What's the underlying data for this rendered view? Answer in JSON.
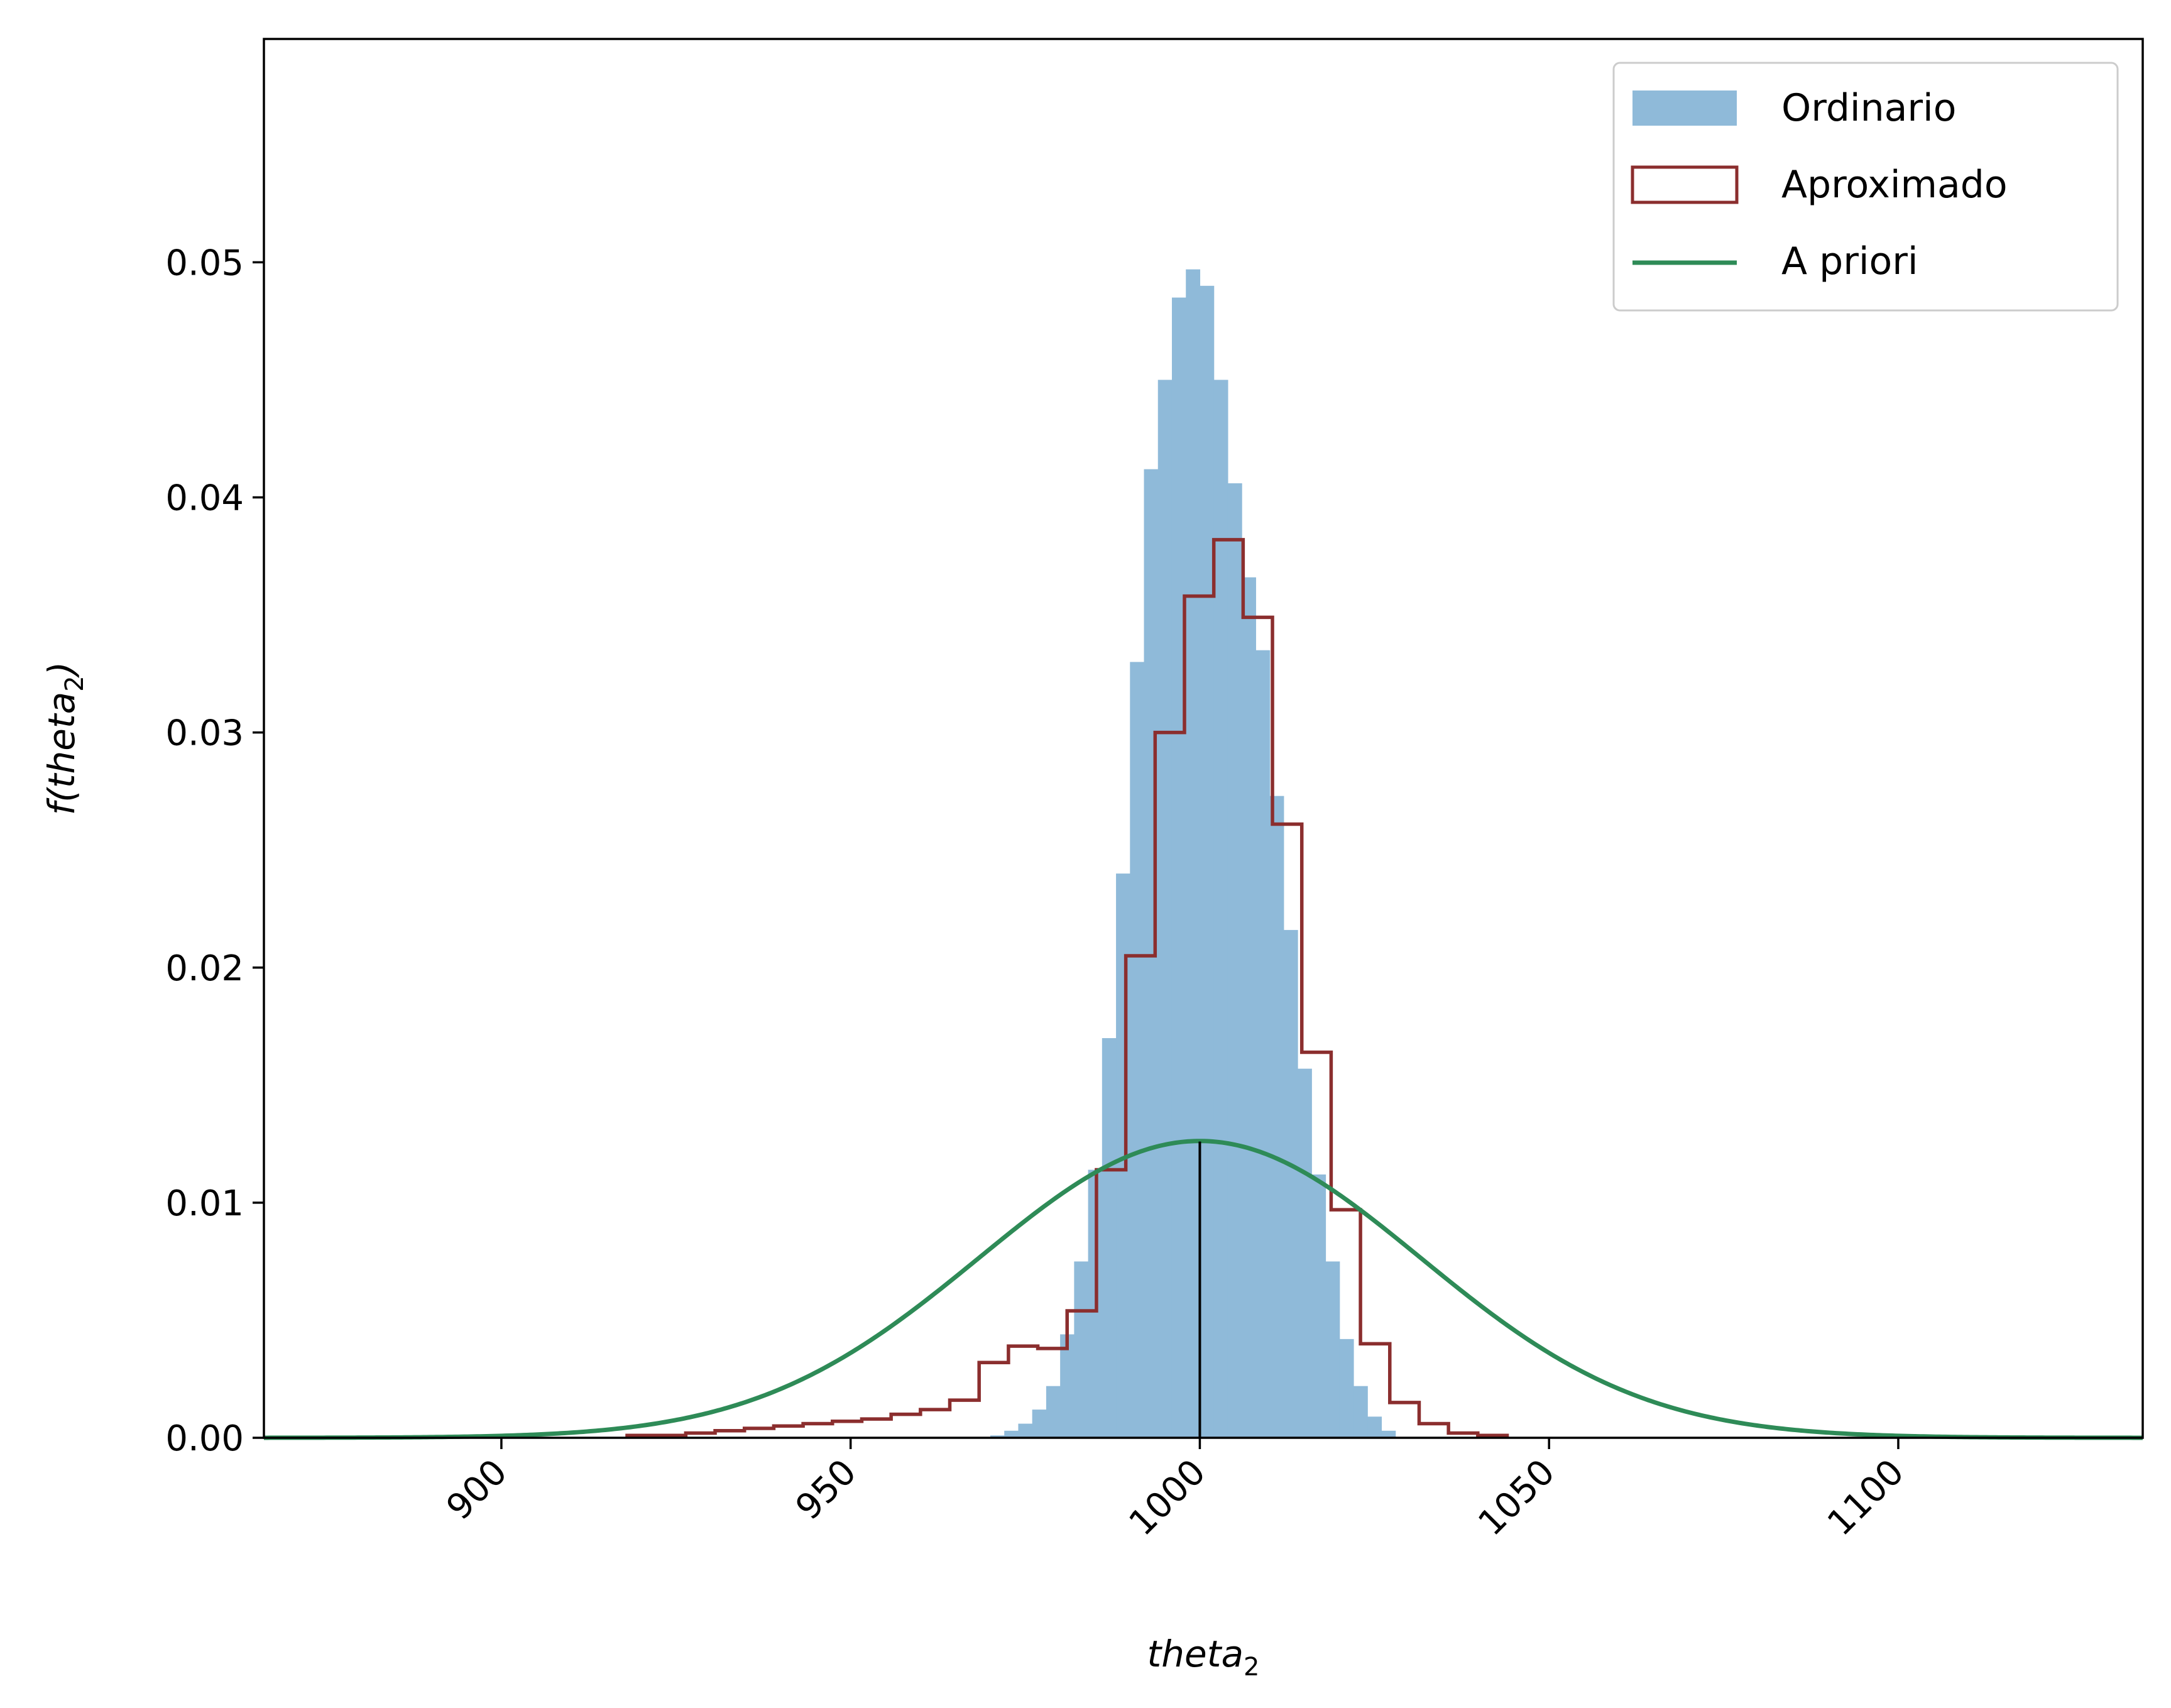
{
  "chart_data": {
    "type": "bar",
    "title": "",
    "xlabel": "theta",
    "xlabel_sub": "2",
    "ylabel_prefix": "f(",
    "ylabel": "theta",
    "ylabel_sub": "2",
    "ylabel_suffix": ")",
    "xlim": [
      866,
      1135
    ],
    "ylim": [
      0,
      0.0595
    ],
    "x_ticks": [
      900,
      950,
      1000,
      1050,
      1100
    ],
    "x_tick_labels": [
      "900",
      "950",
      "1000",
      "1050",
      "1100"
    ],
    "y_ticks": [
      0.0,
      0.01,
      0.02,
      0.03,
      0.04,
      0.05
    ],
    "y_tick_labels": [
      "0.00",
      "0.01",
      "0.02",
      "0.03",
      "0.04",
      "0.05"
    ],
    "grid": false,
    "legend_position": "top-right",
    "colors": {
      "ordinario": "#8fbad9",
      "aproximado": "#8b2e2e",
      "a_priori": "#2e8b57",
      "vline": "#000000"
    },
    "series": [
      {
        "name": "Ordinario",
        "kind": "histogram-filled",
        "bin_edges": [
          970,
          972,
          974,
          976,
          978,
          980,
          982,
          984,
          986,
          988,
          990,
          992,
          994,
          996,
          998,
          1000,
          1002,
          1004,
          1006,
          1008,
          1010,
          1012,
          1014,
          1016,
          1018,
          1020,
          1022,
          1024,
          1026,
          1028
        ],
        "values": [
          0.0001,
          0.0003,
          0.0006,
          0.0012,
          0.0022,
          0.0044,
          0.0075,
          0.0114,
          0.017,
          0.024,
          0.033,
          0.0412,
          0.045,
          0.0485,
          0.0497,
          0.049,
          0.045,
          0.0406,
          0.0366,
          0.0335,
          0.0273,
          0.0216,
          0.0157,
          0.0112,
          0.0075,
          0.0042,
          0.0022,
          0.0009,
          0.0003
        ]
      },
      {
        "name": "Aproximado",
        "kind": "histogram-step",
        "bin_edges": [
          918,
          922.2,
          926.4,
          930.6,
          934.8,
          939,
          943.2,
          947.4,
          951.6,
          955.8,
          960,
          964.2,
          968.4,
          972.6,
          976.8,
          981,
          985.2,
          989.4,
          993.6,
          997.8,
          1002,
          1006.2,
          1010.4,
          1014.6,
          1018.8,
          1023,
          1027.2,
          1031.4,
          1035.6,
          1039.8,
          1044
        ],
        "values": [
          0.0001,
          0.0001,
          0.0002,
          0.0003,
          0.0004,
          0.0005,
          0.0006,
          0.0007,
          0.0008,
          0.001,
          0.0012,
          0.0016,
          0.0032,
          0.0039,
          0.0038,
          0.0054,
          0.0114,
          0.0205,
          0.03,
          0.0358,
          0.0382,
          0.0349,
          0.0261,
          0.0164,
          0.0097,
          0.004,
          0.0015,
          0.0006,
          0.0002,
          0.0001
        ]
      },
      {
        "name": "A priori",
        "kind": "line",
        "distribution": "normal",
        "mean": 1000,
        "sd": 31.6
      }
    ],
    "vline": {
      "x": 1000,
      "y_top": 0.0126
    }
  }
}
